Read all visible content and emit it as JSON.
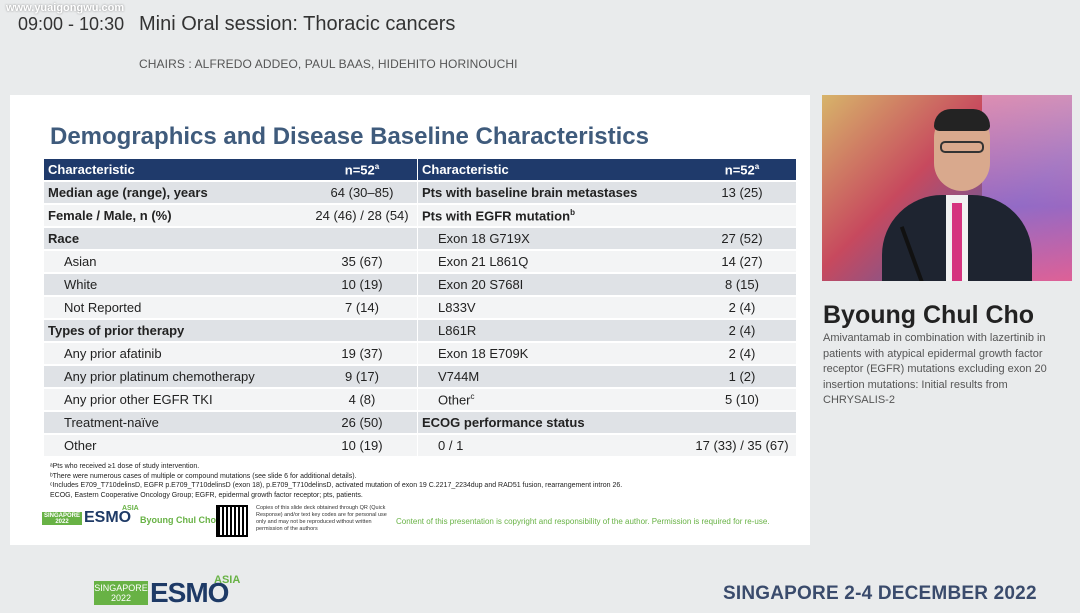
{
  "watermark": "www.yuaigongwu.com",
  "session": {
    "time": "09:00 - 10:30",
    "title": "Mini Oral session: Thoracic cancers",
    "chairs": "CHAIRS : ALFREDO ADDEO, PAUL BAAS, HIDEHITO HORINOUCHI"
  },
  "slide": {
    "title": "Demographics and Disease Baseline Characteristics",
    "left_table": {
      "header": {
        "label": "Characteristic",
        "n": "n=52",
        "n_sup": "a"
      },
      "rows": [
        {
          "label": "Median age (range), years",
          "value": "64 (30–85)",
          "bold": true
        },
        {
          "label": "Female / Male, n (%)",
          "value": "24 (46) / 28 (54)",
          "bold": true
        },
        {
          "label": "Race",
          "value": "",
          "bold": true
        },
        {
          "label": "Asian",
          "value": "35 (67)"
        },
        {
          "label": "White",
          "value": "10 (19)"
        },
        {
          "label": "Not Reported",
          "value": "7 (14)"
        },
        {
          "label": "Types of prior therapy",
          "value": "",
          "bold": true
        },
        {
          "label": "Any prior afatinib",
          "value": "19 (37)"
        },
        {
          "label": "Any prior platinum chemotherapy",
          "value": "9 (17)"
        },
        {
          "label": "Any prior other EGFR TKI",
          "value": "4 (8)"
        },
        {
          "label": "Treatment-naïve",
          "value": "26 (50)"
        },
        {
          "label": "Other",
          "value": "10 (19)"
        }
      ]
    },
    "right_table": {
      "header": {
        "label": "Characteristic",
        "n": "n=52",
        "n_sup": "a"
      },
      "rows": [
        {
          "label": "Pts with baseline brain metastases",
          "value": "13 (25)",
          "bold": true
        },
        {
          "label": "Pts with EGFR mutation",
          "sup": "b",
          "value": "",
          "bold": true
        },
        {
          "label": "Exon 18 G719X",
          "value": "27 (52)"
        },
        {
          "label": "Exon 21 L861Q",
          "value": "14 (27)"
        },
        {
          "label": "Exon 20 S768I",
          "value": "8 (15)"
        },
        {
          "label": "L833V",
          "value": "2 (4)"
        },
        {
          "label": "L861R",
          "value": "2 (4)"
        },
        {
          "label": "Exon 18 E709K",
          "value": "2 (4)"
        },
        {
          "label": "V744M",
          "value": "1 (2)"
        },
        {
          "label": "Other",
          "sup": "c",
          "value": "5 (10)"
        },
        {
          "label": "ECOG performance status",
          "value": "",
          "bold": true
        },
        {
          "label": "0 / 1",
          "value": "17 (33) / 35 (67)"
        }
      ]
    },
    "footnotes": [
      "ᵃPts who received ≥1 dose of study intervention.",
      "ᵇThere were numerous cases of multiple or compound mutations (see slide 6 for additional details).",
      "ᶜIncludes E709_T710delinsD, EGFR p.E709_T710delinsD (exon 18), p.E709_T710delinsD, activated mutation of exon 19 C.2217_2234dup and RAD51 fusion, rearrangement intron 26.",
      "ECOG, Eastern Cooperative Oncology Group; EGFR, epidermal growth factor receptor; pts, patients."
    ],
    "footer": {
      "esmo_tag": "SINGAPORE 2022",
      "esmo_word": "ESMO",
      "esmo_asia": "ASIA",
      "author": "Byoung Chul Cho",
      "qr_note": "Copies of this slide deck obtained through QR (Quick Response) and/or text key codes are for personal use only and may not be reproduced without written permission of the authors",
      "copyright": "Content of this presentation is copyright and responsibility of the author. Permission is required for re-use."
    }
  },
  "speaker": {
    "name": "Byoung Chul Cho",
    "talk": "Amivantamab in combination with lazertinib in patients with atypical epidermal growth factor receptor (EGFR) mutations excluding exon 20 insertion mutations: Initial results from CHRYSALIS-2"
  },
  "bottom": {
    "esmo_tag": "SINGAPORE 2022",
    "esmo_word": "ESMO",
    "esmo_asia": "ASIA",
    "event": "SINGAPORE 2-4 DECEMBER 2022"
  },
  "colors": {
    "table_header": "#1f3a6b",
    "title": "#3f5b7c",
    "esmo_green": "#68b245",
    "esmo_blue": "#1e3a66"
  }
}
